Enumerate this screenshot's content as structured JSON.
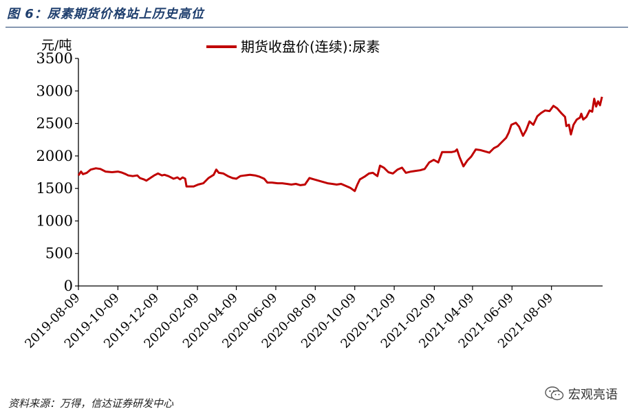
{
  "figure": {
    "title": "图 6：尿素期货价格站上历史高位",
    "source": "资料来源：万得，信达证券研发中心",
    "watermark": "宏观亮语"
  },
  "chart_data": {
    "type": "line",
    "ylabel": "元/吨",
    "ylim": [
      0,
      3500
    ],
    "yticks": [
      0,
      500,
      1000,
      1500,
      2000,
      2500,
      3000,
      3500
    ],
    "xticks": [
      "2019-08-09",
      "2019-10-09",
      "2019-12-09",
      "2020-02-09",
      "2020-04-09",
      "2020-06-09",
      "2020-08-09",
      "2020-10-09",
      "2020-12-09",
      "2021-02-09",
      "2021-04-09",
      "2021-06-09",
      "2021-08-09"
    ],
    "xlim": [
      "2019-08-09",
      "2021-10-27"
    ],
    "legend_position": "top",
    "series": [
      {
        "name": "期货收盘价(连续):尿素",
        "color": "#c00000",
        "points": [
          [
            "2019-08-09",
            1700
          ],
          [
            "2019-08-13",
            1760
          ],
          [
            "2019-08-16",
            1720
          ],
          [
            "2019-08-22",
            1740
          ],
          [
            "2019-08-28",
            1790
          ],
          [
            "2019-09-05",
            1810
          ],
          [
            "2019-09-12",
            1800
          ],
          [
            "2019-09-20",
            1760
          ],
          [
            "2019-09-30",
            1750
          ],
          [
            "2019-10-09",
            1760
          ],
          [
            "2019-10-15",
            1745
          ],
          [
            "2019-10-21",
            1720
          ],
          [
            "2019-10-25",
            1700
          ],
          [
            "2019-11-01",
            1690
          ],
          [
            "2019-11-08",
            1700
          ],
          [
            "2019-11-12",
            1660
          ],
          [
            "2019-11-18",
            1640
          ],
          [
            "2019-11-22",
            1620
          ],
          [
            "2019-11-28",
            1660
          ],
          [
            "2019-12-04",
            1700
          ],
          [
            "2019-12-10",
            1730
          ],
          [
            "2019-12-16",
            1700
          ],
          [
            "2019-12-20",
            1710
          ],
          [
            "2019-12-26",
            1690
          ],
          [
            "2020-01-03",
            1650
          ],
          [
            "2020-01-09",
            1670
          ],
          [
            "2020-01-13",
            1640
          ],
          [
            "2020-01-17",
            1670
          ],
          [
            "2020-01-21",
            1650
          ],
          [
            "2020-01-23",
            1530
          ],
          [
            "2020-02-03",
            1530
          ],
          [
            "2020-02-10",
            1560
          ],
          [
            "2020-02-18",
            1580
          ],
          [
            "2020-02-26",
            1660
          ],
          [
            "2020-03-05",
            1710
          ],
          [
            "2020-03-09",
            1790
          ],
          [
            "2020-03-13",
            1740
          ],
          [
            "2020-03-20",
            1730
          ],
          [
            "2020-03-27",
            1690
          ],
          [
            "2020-04-03",
            1660
          ],
          [
            "2020-04-09",
            1650
          ],
          [
            "2020-04-15",
            1690
          ],
          [
            "2020-04-22",
            1700
          ],
          [
            "2020-04-30",
            1710
          ],
          [
            "2020-05-08",
            1700
          ],
          [
            "2020-05-15",
            1680
          ],
          [
            "2020-05-22",
            1650
          ],
          [
            "2020-05-27",
            1590
          ],
          [
            "2020-06-03",
            1590
          ],
          [
            "2020-06-12",
            1580
          ],
          [
            "2020-06-19",
            1580
          ],
          [
            "2020-06-26",
            1570
          ],
          [
            "2020-07-03",
            1560
          ],
          [
            "2020-07-10",
            1570
          ],
          [
            "2020-07-17",
            1550
          ],
          [
            "2020-07-24",
            1560
          ],
          [
            "2020-07-31",
            1660
          ],
          [
            "2020-08-07",
            1640
          ],
          [
            "2020-08-14",
            1620
          ],
          [
            "2020-08-21",
            1600
          ],
          [
            "2020-08-28",
            1580
          ],
          [
            "2020-09-04",
            1570
          ],
          [
            "2020-09-11",
            1560
          ],
          [
            "2020-09-18",
            1570
          ],
          [
            "2020-09-25",
            1540
          ],
          [
            "2020-10-02",
            1510
          ],
          [
            "2020-10-09",
            1460
          ],
          [
            "2020-10-13",
            1560
          ],
          [
            "2020-10-17",
            1640
          ],
          [
            "2020-10-24",
            1680
          ],
          [
            "2020-10-31",
            1730
          ],
          [
            "2020-11-06",
            1740
          ],
          [
            "2020-11-13",
            1690
          ],
          [
            "2020-11-17",
            1850
          ],
          [
            "2020-11-23",
            1820
          ],
          [
            "2020-11-30",
            1750
          ],
          [
            "2020-12-07",
            1730
          ],
          [
            "2020-12-14",
            1790
          ],
          [
            "2020-12-21",
            1820
          ],
          [
            "2020-12-27",
            1740
          ],
          [
            "2021-01-04",
            1760
          ],
          [
            "2021-01-11",
            1770
          ],
          [
            "2021-01-18",
            1780
          ],
          [
            "2021-01-25",
            1800
          ],
          [
            "2021-02-01",
            1900
          ],
          [
            "2021-02-08",
            1940
          ],
          [
            "2021-02-15",
            1900
          ],
          [
            "2021-02-21",
            2060
          ],
          [
            "2021-03-01",
            2060
          ],
          [
            "2021-03-08",
            2060
          ],
          [
            "2021-03-13",
            2070
          ],
          [
            "2021-03-16",
            2100
          ],
          [
            "2021-03-20",
            1980
          ],
          [
            "2021-03-26",
            1840
          ],
          [
            "2021-04-01",
            1930
          ],
          [
            "2021-04-07",
            1990
          ],
          [
            "2021-04-14",
            2100
          ],
          [
            "2021-04-21",
            2090
          ],
          [
            "2021-04-28",
            2070
          ],
          [
            "2021-05-05",
            2050
          ],
          [
            "2021-05-12",
            2120
          ],
          [
            "2021-05-18",
            2150
          ],
          [
            "2021-05-24",
            2210
          ],
          [
            "2021-05-31",
            2280
          ],
          [
            "2021-06-04",
            2360
          ],
          [
            "2021-06-08",
            2480
          ],
          [
            "2021-06-15",
            2510
          ],
          [
            "2021-06-20",
            2450
          ],
          [
            "2021-06-26",
            2310
          ],
          [
            "2021-07-01",
            2400
          ],
          [
            "2021-07-06",
            2530
          ],
          [
            "2021-07-12",
            2480
          ],
          [
            "2021-07-18",
            2610
          ],
          [
            "2021-07-24",
            2660
          ],
          [
            "2021-07-30",
            2700
          ],
          [
            "2021-08-06",
            2690
          ],
          [
            "2021-08-12",
            2770
          ],
          [
            "2021-08-18",
            2730
          ],
          [
            "2021-08-24",
            2660
          ],
          [
            "2021-08-30",
            2600
          ],
          [
            "2021-09-01",
            2460
          ],
          [
            "2021-09-05",
            2480
          ],
          [
            "2021-09-08",
            2330
          ],
          [
            "2021-09-12",
            2480
          ],
          [
            "2021-09-17",
            2560
          ],
          [
            "2021-09-22",
            2590
          ],
          [
            "2021-09-24",
            2650
          ],
          [
            "2021-09-27",
            2560
          ],
          [
            "2021-10-02",
            2600
          ],
          [
            "2021-10-07",
            2700
          ],
          [
            "2021-10-11",
            2680
          ],
          [
            "2021-10-14",
            2880
          ],
          [
            "2021-10-17",
            2760
          ],
          [
            "2021-10-20",
            2840
          ],
          [
            "2021-10-23",
            2780
          ],
          [
            "2021-10-26",
            2910
          ]
        ]
      }
    ]
  }
}
